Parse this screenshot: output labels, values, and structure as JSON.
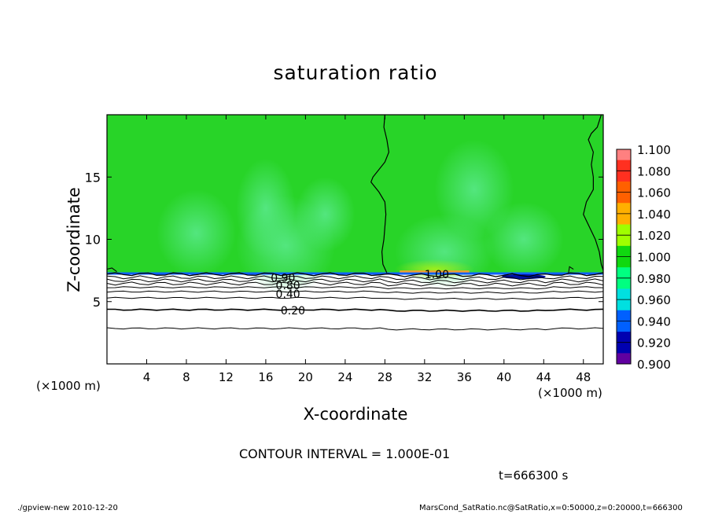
{
  "chart_data": {
    "type": "heatmap",
    "title": "saturation ratio",
    "xlabel": "X-coordinate",
    "ylabel": "Z-coordinate",
    "x_unit_label": "(×1000 m)",
    "xlim": [
      0,
      50
    ],
    "ylim": [
      0,
      20
    ],
    "x_ticks": [
      4,
      8,
      12,
      16,
      20,
      24,
      28,
      32,
      36,
      40,
      44,
      48
    ],
    "y_ticks": [
      5,
      10,
      15
    ],
    "contour_interval_text": "CONTOUR INTERVAL = 1.000E-01",
    "contour_labels": [
      {
        "text": "0.20",
        "x": 17.5,
        "z": 4.3
      },
      {
        "text": "0.40",
        "x": 17.0,
        "z": 5.6
      },
      {
        "text": "0.80",
        "x": 17.0,
        "z": 6.3
      },
      {
        "text": "0.90",
        "x": 16.5,
        "z": 6.9
      },
      {
        "text": "1.00",
        "x": 32.0,
        "z": 7.2
      }
    ],
    "colorbar": {
      "levels": [
        1.1,
        1.08,
        1.06,
        1.04,
        1.02,
        1.0,
        0.98,
        0.96,
        0.94,
        0.92,
        0.9
      ],
      "tick_labels": [
        "1.100",
        "1.080",
        "1.060",
        "1.040",
        "1.020",
        "1.000",
        "0.980",
        "0.960",
        "0.940",
        "0.920",
        "0.900"
      ],
      "colors": [
        "#ff8080",
        "#ff3020",
        "#ff6000",
        "#ffb000",
        "#a0ff00",
        "#10d810",
        "#00ff80",
        "#00e0e0",
        "#0060ff",
        "#0000b0",
        "#6000a0"
      ]
    },
    "field_colors": {
      "upper": "#28d428",
      "upper_light": "#48e46e",
      "below_inversion": "#ffffff",
      "saturated_patch": "#f0a030",
      "dry_patch": "#0010a0"
    }
  },
  "text": {
    "title": "saturation ratio",
    "xlabel": "X-coordinate",
    "ylabel": "Z-coordinate",
    "x_unit_left": "(×1000 m)",
    "x_unit_right": "(×1000 m)",
    "interval": "CONTOUR INTERVAL = 1.000E-01",
    "time": "t=666300 s",
    "footer_left": "./gpview-new  2010-12-20",
    "footer_right": "MarsCond_SatRatio.nc@SatRatio,x=0:50000,z=0:20000,t=666300"
  }
}
